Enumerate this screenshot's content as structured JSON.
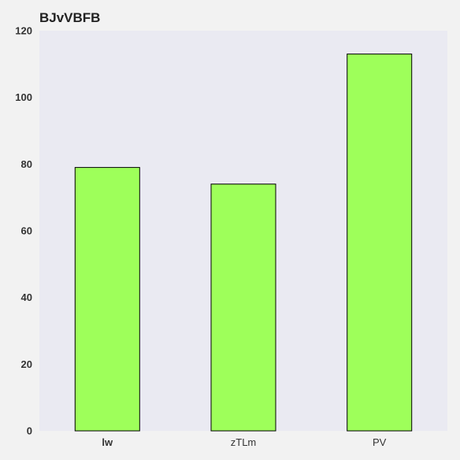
{
  "chart_data": {
    "type": "bar",
    "title": "BJvVBFB",
    "xlabel": "",
    "ylabel": "",
    "categories": [
      "lw",
      "zTLm",
      "PV"
    ],
    "values": [
      79,
      74,
      113
    ],
    "ylim": [
      0,
      120
    ],
    "yticks": [
      "0",
      "20",
      "40",
      "60",
      "80",
      "100",
      "120"
    ],
    "grid": false,
    "legend": "none",
    "colors": {
      "bar_fill": "#9eff5a",
      "bar_edge": "#000000",
      "plot_background": "#eaeaf2",
      "page_background": "#f2f2f2"
    }
  }
}
